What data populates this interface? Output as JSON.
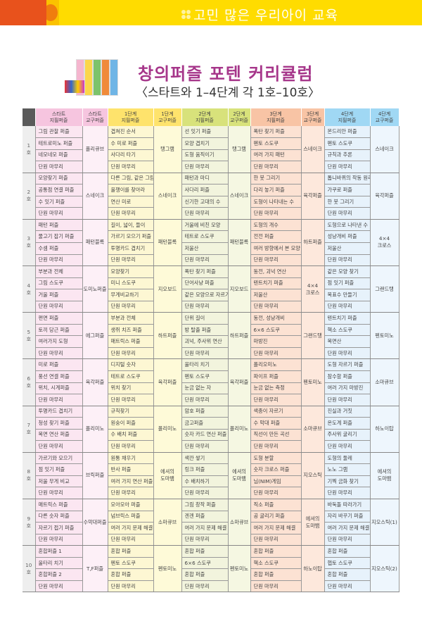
{
  "banner": {
    "title": "고민 많은 우리아이 교육"
  },
  "header": {
    "title": "창의퍼즐 포텐 커리큘럼",
    "subtitle": "〈스타트와 1–4단계 각 1호–10호〉"
  },
  "colors": {
    "banner": "#ffdc00",
    "accent": "#e8521c",
    "title": "#a6368a"
  },
  "columns": [
    "스타트\n지필퍼즐",
    "스타트\n교구퍼즐",
    "1단계\n지필퍼즐",
    "1단계\n교구퍼즐",
    "2단계\n지필퍼즐",
    "2단계\n교구퍼즐",
    "3단계\n지필퍼즐",
    "3단계\n교구퍼즐",
    "4단계\n지필퍼즐",
    "4단계\n교구퍼즐"
  ],
  "rows": [
    {
      "num": "1\n호",
      "stages": [
        {
          "paper": [
            "그림 관찰 퍼즐",
            "테트로미노 퍼즐",
            "네모네모 퍼즐",
            "단원 마무리"
          ],
          "tool": "폴리큐브"
        },
        {
          "paper": [
            "겹쳐진 순서",
            "수 미로 퍼즐",
            "사다리 타기",
            "단원 마무리"
          ],
          "tool": "탱그램"
        },
        {
          "paper": [
            "선 잇기 퍼즐",
            "모양 겹치기",
            "도형 움직이기",
            "단원 마무리"
          ],
          "tool": "탱그램"
        },
        {
          "paper": [
            "폭탄 찾기 퍼즐",
            "펜토 스도쿠",
            "여러 가지 패턴",
            "단원 마무리"
          ],
          "tool": "스네이크"
        },
        {
          "paper": [
            "몬드리안 퍼즐",
            "펜토 스도쿠",
            "규칙과 추론",
            "단원 마무리"
          ],
          "tool": "스네이크"
        }
      ]
    },
    {
      "num": "2\n호",
      "stages": [
        {
          "paper": [
            "모양찾기 퍼즐",
            "공통점 연결 퍼즐",
            "수 잇기 퍼즐",
            "단원 마무리"
          ],
          "tool": "스네이크"
        },
        {
          "paper": [
            "다른 그림, 같은 그림",
            "올챙이를 찾아라",
            "연산 미로",
            "단원 마무리"
          ],
          "tool": "스네이크"
        },
        {
          "paper": [
            "패턴과 마디",
            "사다리 퍼즐",
            "신기한 고대의 수",
            "단원 마무리"
          ],
          "tool": "스네이크"
        },
        {
          "paper": [
            "한 붓 그리기",
            "다리 놓기 퍼즐",
            "도형이 나타내는 수",
            "단원 마무리"
          ],
          "tool": "육각퍼즐"
        },
        {
          "paper": [
            "톱니바퀴의 작동 원리",
            "가쿠로 퍼즐",
            "한 붓 그리기",
            "단원 마무리"
          ],
          "tool": "육각퍼즐"
        }
      ]
    },
    {
      "num": "3\n호",
      "stages": [
        {
          "paper": [
            "패턴 퍼즐",
            "물고기 잡기 퍼즐",
            "수셈 퍼즐",
            "단원 마무리"
          ],
          "tool": "패턴블록"
        },
        {
          "paper": [
            "길이, 넓이, 들이",
            "가르기 모으기 퍼즐",
            "투명카드 겹치기",
            "단원 마무리"
          ],
          "tool": "패턴블록"
        },
        {
          "paper": [
            "거울에 비친 모양",
            "테트로 스도쿠",
            "저울산",
            "단원 마무리"
          ],
          "tool": "패턴블록"
        },
        {
          "paper": [
            "도형의 개수",
            "전전 퍼즐",
            "여러 방향에서 본 모양",
            "단원 마무리"
          ],
          "tool": "하트퍼즐"
        },
        {
          "paper": [
            "도형으로 나타낸 수",
            "성냥개비 퍼즐",
            "저울산",
            "단원 마무리"
          ],
          "tool": "4×4\n크로스"
        }
      ]
    },
    {
      "num": "4\n호",
      "stages": [
        {
          "paper": [
            "부분과 전체",
            "그림 스도쿠",
            "거울 퍼즐",
            "단원 마무리"
          ],
          "tool": "도미노퍼즐"
        },
        {
          "paper": [
            "모양찾기",
            "미니 스도쿠",
            "무게비교하기",
            "단원 마무리"
          ],
          "tool": "지오보드"
        },
        {
          "paper": [
            "폭탄 찾기 퍼즐",
            "단어사냥 퍼즐",
            "같은 모양으로 자르기",
            "단원 마무리"
          ],
          "tool": "지오보드"
        },
        {
          "paper": [
            "동전, 괴넉 연산",
            "텐트치기 퍼즐",
            "저울산",
            "단원 마무리"
          ],
          "tool": "4×4\n크로스"
        },
        {
          "paper": [
            "같은 모양 찾기",
            "점 잇기 퍼즐",
            "목표수 만들기",
            "단원 마무리"
          ],
          "tool": "그랜드탱"
        }
      ]
    },
    {
      "num": "5\n호",
      "stages": [
        {
          "paper": [
            "편면 퍼즐",
            "토끼 당근 퍼즐",
            "여러가지 도형",
            "단원 마무리"
          ],
          "tool": "에그퍼즐"
        },
        {
          "paper": [
            "부분과 전체",
            "생쥐 치즈 퍼즐",
            "매트릭스 퍼즐",
            "단원 마무리"
          ],
          "tool": "하트퍼즐"
        },
        {
          "paper": [
            "단위 길이",
            "방 탈출 퍼즐",
            "괴넉, 주사위 연산",
            "단원 마무리"
          ],
          "tool": "하트퍼즐"
        },
        {
          "paper": [
            "동전, 성냥개비",
            "6×6 스도쿠",
            "마방진",
            "단원 마무리"
          ],
          "tool": "그랜드탱"
        },
        {
          "paper": [
            "텐트치기 퍼즐",
            "헥소 스도쿠",
            "복면산",
            "단원 마무리"
          ],
          "tool": "펜토미노"
        }
      ]
    },
    {
      "num": "6\n호",
      "stages": [
        {
          "paper": [
            "미로 퍼즐",
            "풍선 연결 퍼즐",
            "위치, 시계퍼즐",
            "단원 마무리"
          ],
          "tool": "육각퍼즐"
        },
        {
          "paper": [
            "디지털 숫자",
            "테트로 스도쿠",
            "위치 찾기",
            "단원 마무리"
          ],
          "tool": "육각퍼즐"
        },
        {
          "paper": [
            "울타리 치기",
            "펜토 스도쿠",
            "눈금 없는 자",
            "단원 마무리"
          ],
          "tool": "육각퍼즐"
        },
        {
          "paper": [
            "폴리오미노",
            "파이프 퍼즐",
            "눈금 없는 측정",
            "단원 마무리"
          ],
          "tool": "펜토미노"
        },
        {
          "paper": [
            "도형 자르기 퍼즐",
            "잠수함 퍼즐",
            "여러 가지 마방진",
            "단원 마무리"
          ],
          "tool": "소마큐브"
        }
      ]
    },
    {
      "num": "7\n호",
      "stages": [
        {
          "paper": [
            "투명카드 겹치기",
            "청성 찾기 퍼즐",
            "복면 연산 퍼즐",
            "단원 마무리"
          ],
          "tool": "폴리미노"
        },
        {
          "paper": [
            "규칙찾기",
            "원숭이 퍼즐",
            "수 배치 퍼즐",
            "단원 마무리"
          ],
          "tool": "폴리미노"
        },
        {
          "paper": [
            "암호 퍼즐",
            "금고퍼즐",
            "숫자 카드 연산 퍼즐",
            "단원 마무리"
          ],
          "tool": "폴리미노"
        },
        {
          "paper": [
            "색종이 자르기",
            "수 막대 퍼즐",
            "직선이 만든 곡선",
            "단원 마무리"
          ],
          "tool": "소마큐브"
        },
        {
          "paper": [
            "진실과 거짓",
            "온도계 퍼즐",
            "주사위 굴리기",
            "단원 마무리"
          ],
          "tool": "하노이탑"
        }
      ]
    },
    {
      "num": "8\n호",
      "stages": [
        {
          "paper": [
            "가르기와 모으기",
            "점 잇기 퍼즐",
            "저울 무게 비교",
            "단원 마무리"
          ],
          "tool": "브릭퍼즐"
        },
        {
          "paper": [
            "원통 채우기",
            "반사 퍼즐",
            "여러 가지 연산 퍼즐",
            "단원 마무리"
          ],
          "tool": "에셔의\n도마뱀"
        },
        {
          "paper": [
            "색깐 쌓기",
            "링크 퍼즐",
            "수 배치하기",
            "단원 마무리"
          ],
          "tool": "에셔의\n도마뱀"
        },
        {
          "paper": [
            "도형 분할",
            "숫자 크로스 퍼즐",
            "님(NIM)게임",
            "단원 마무리"
          ],
          "tool": "지오스틱"
        },
        {
          "paper": [
            "도형의 둘레",
            "노노 그램",
            "기찍 금화 찾기",
            "단원 마무리"
          ],
          "tool": "에셔의\n도마뱀"
        }
      ]
    },
    {
      "num": "9\n호",
      "stages": [
        {
          "paper": [
            "매트릭스 퍼즐",
            "다른 숫자 퍼즐",
            "자르기 접기 퍼즐",
            "단원 마무리"
          ],
          "tool": "수막대퍼즐"
        },
        {
          "paper": [
            "모아모아 퍼즐",
            "넘브릭스 퍼즐",
            "여러 가지 문제 해결",
            "단원 마무리"
          ],
          "tool": "소마큐브"
        },
        {
          "paper": [
            "그림 창작 퍼즐",
            "겐겐 퍼즐",
            "여러 가지 문제 해결",
            "단원 마무리"
          ],
          "tool": "소마큐브"
        },
        {
          "paper": [
            "직소 퍼즐",
            "공 굴리기 퍼즐",
            "여러 가지 문제 해결",
            "단원 마무리"
          ],
          "tool": "에셔의\n도마뱀"
        },
        {
          "paper": [
            "바둑돌 따라가기",
            "자리 바꾸기 퍼즐",
            "여러 가지 문제 해결",
            "단원 마무리"
          ],
          "tool": "지오스틱(1)"
        }
      ]
    },
    {
      "num": "10\n호",
      "stages": [
        {
          "paper": [
            "혼합퍼즐 1",
            "울타리 치기",
            "혼합퍼즐 2",
            "단원 마무리"
          ],
          "tool": "T,F퍼즐"
        },
        {
          "paper": [
            "혼합 퍼즐",
            "펜토 스도쿠",
            "혼합 퍼즐",
            "단원 마무리"
          ],
          "tool": "펜토미노"
        },
        {
          "paper": [
            "혼합 퍼즐",
            "6×6 스도쿠",
            "혼합 퍼즐",
            "단원 마무리"
          ],
          "tool": "펜토미노"
        },
        {
          "paper": [
            "혼합 퍼즐",
            "헥소 스도쿠",
            "혼합 퍼즐",
            "단원 마무리"
          ],
          "tool": "하노이탑"
        },
        {
          "paper": [
            "혼합 퍼즐",
            "헵토 스도쿠",
            "혼합 퍼즐",
            "단원 마무리"
          ],
          "tool": "지오스틱(2)"
        }
      ]
    }
  ]
}
